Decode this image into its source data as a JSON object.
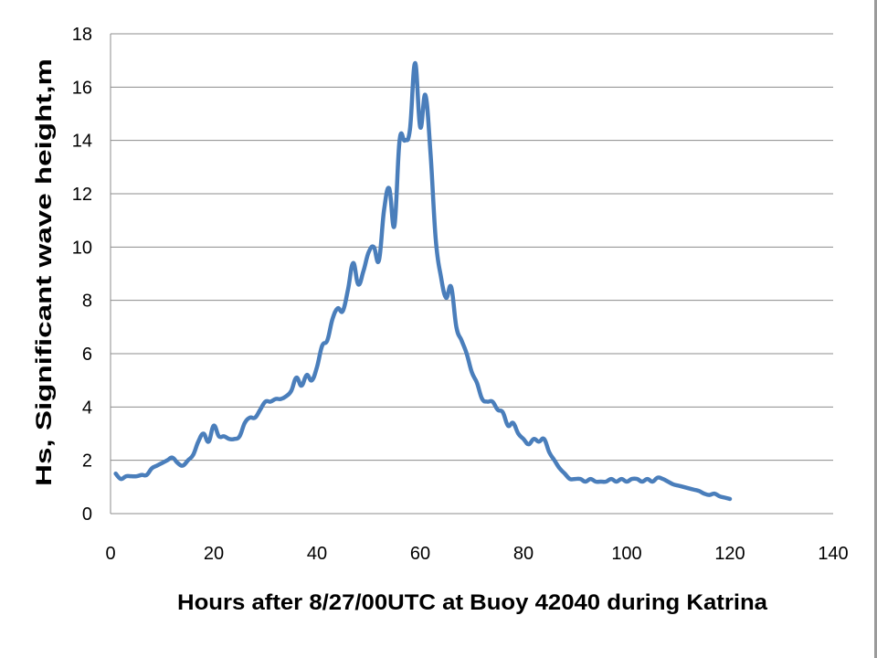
{
  "chart_data": {
    "type": "line",
    "title": "",
    "xlabel": "Hours after 8/27/00UTC at Buoy 42040 during Katrina",
    "ylabel": "Hs, Significant wave height,m",
    "xlim": [
      0,
      140
    ],
    "ylim": [
      0,
      18
    ],
    "xticks": [
      "0",
      "20",
      "40",
      "60",
      "80",
      "100",
      "120",
      "140"
    ],
    "yticks": [
      "0",
      "2",
      "4",
      "6",
      "8",
      "10",
      "12",
      "14",
      "16",
      "18"
    ],
    "grid": true,
    "legend": "none",
    "line_color": "#4a7ebb",
    "series": [
      {
        "x": [
          1,
          2,
          3,
          4,
          5,
          6,
          7,
          8,
          9,
          10,
          11,
          12,
          13,
          14,
          15,
          16,
          17,
          18,
          19,
          20,
          21,
          22,
          23,
          24,
          25,
          26,
          27,
          28,
          29,
          30,
          31,
          32,
          33,
          34,
          35,
          36,
          37,
          38,
          39,
          40,
          41,
          42,
          43,
          44,
          45,
          46,
          47,
          48,
          49,
          50,
          51,
          52,
          53,
          54,
          55,
          56,
          57,
          58,
          59,
          60,
          61,
          62,
          63,
          64,
          65,
          66,
          67,
          68,
          69,
          70,
          71,
          72,
          73,
          74,
          75,
          76,
          77,
          78,
          79,
          80,
          81,
          82,
          83,
          84,
          85,
          86,
          87,
          88,
          89,
          90,
          91,
          92,
          93,
          94,
          95,
          96,
          97,
          98,
          99,
          100,
          101,
          102,
          103,
          104,
          105,
          106,
          107,
          108,
          109,
          110,
          111,
          112,
          113,
          114,
          115,
          116,
          117,
          118,
          119,
          120
        ],
        "values": [
          1.5,
          1.3,
          1.4,
          1.4,
          1.4,
          1.45,
          1.45,
          1.7,
          1.8,
          1.9,
          2.0,
          2.1,
          1.9,
          1.8,
          2.0,
          2.2,
          2.7,
          3.0,
          2.7,
          3.3,
          2.9,
          2.9,
          2.8,
          2.8,
          2.9,
          3.4,
          3.6,
          3.6,
          3.9,
          4.2,
          4.2,
          4.3,
          4.3,
          4.4,
          4.6,
          5.1,
          4.8,
          5.2,
          5.0,
          5.5,
          6.3,
          6.5,
          7.3,
          7.7,
          7.6,
          8.4,
          9.4,
          8.6,
          9.1,
          9.8,
          10.0,
          9.5,
          11.4,
          12.2,
          10.8,
          14.0,
          14.0,
          14.4,
          16.9,
          14.5,
          15.7,
          13.5,
          10.3,
          8.9,
          8.1,
          8.5,
          7.0,
          6.5,
          6.0,
          5.3,
          4.9,
          4.3,
          4.2,
          4.2,
          3.9,
          3.8,
          3.3,
          3.4,
          3.0,
          2.8,
          2.6,
          2.8,
          2.7,
          2.8,
          2.3,
          2.0,
          1.7,
          1.5,
          1.3,
          1.3,
          1.3,
          1.2,
          1.3,
          1.2,
          1.2,
          1.2,
          1.3,
          1.2,
          1.3,
          1.2,
          1.3,
          1.3,
          1.2,
          1.3,
          1.2,
          1.35,
          1.3,
          1.2,
          1.1,
          1.05,
          1.0,
          0.95,
          0.9,
          0.85,
          0.75,
          0.7,
          0.75,
          0.65,
          0.6,
          0.55
        ]
      }
    ]
  }
}
